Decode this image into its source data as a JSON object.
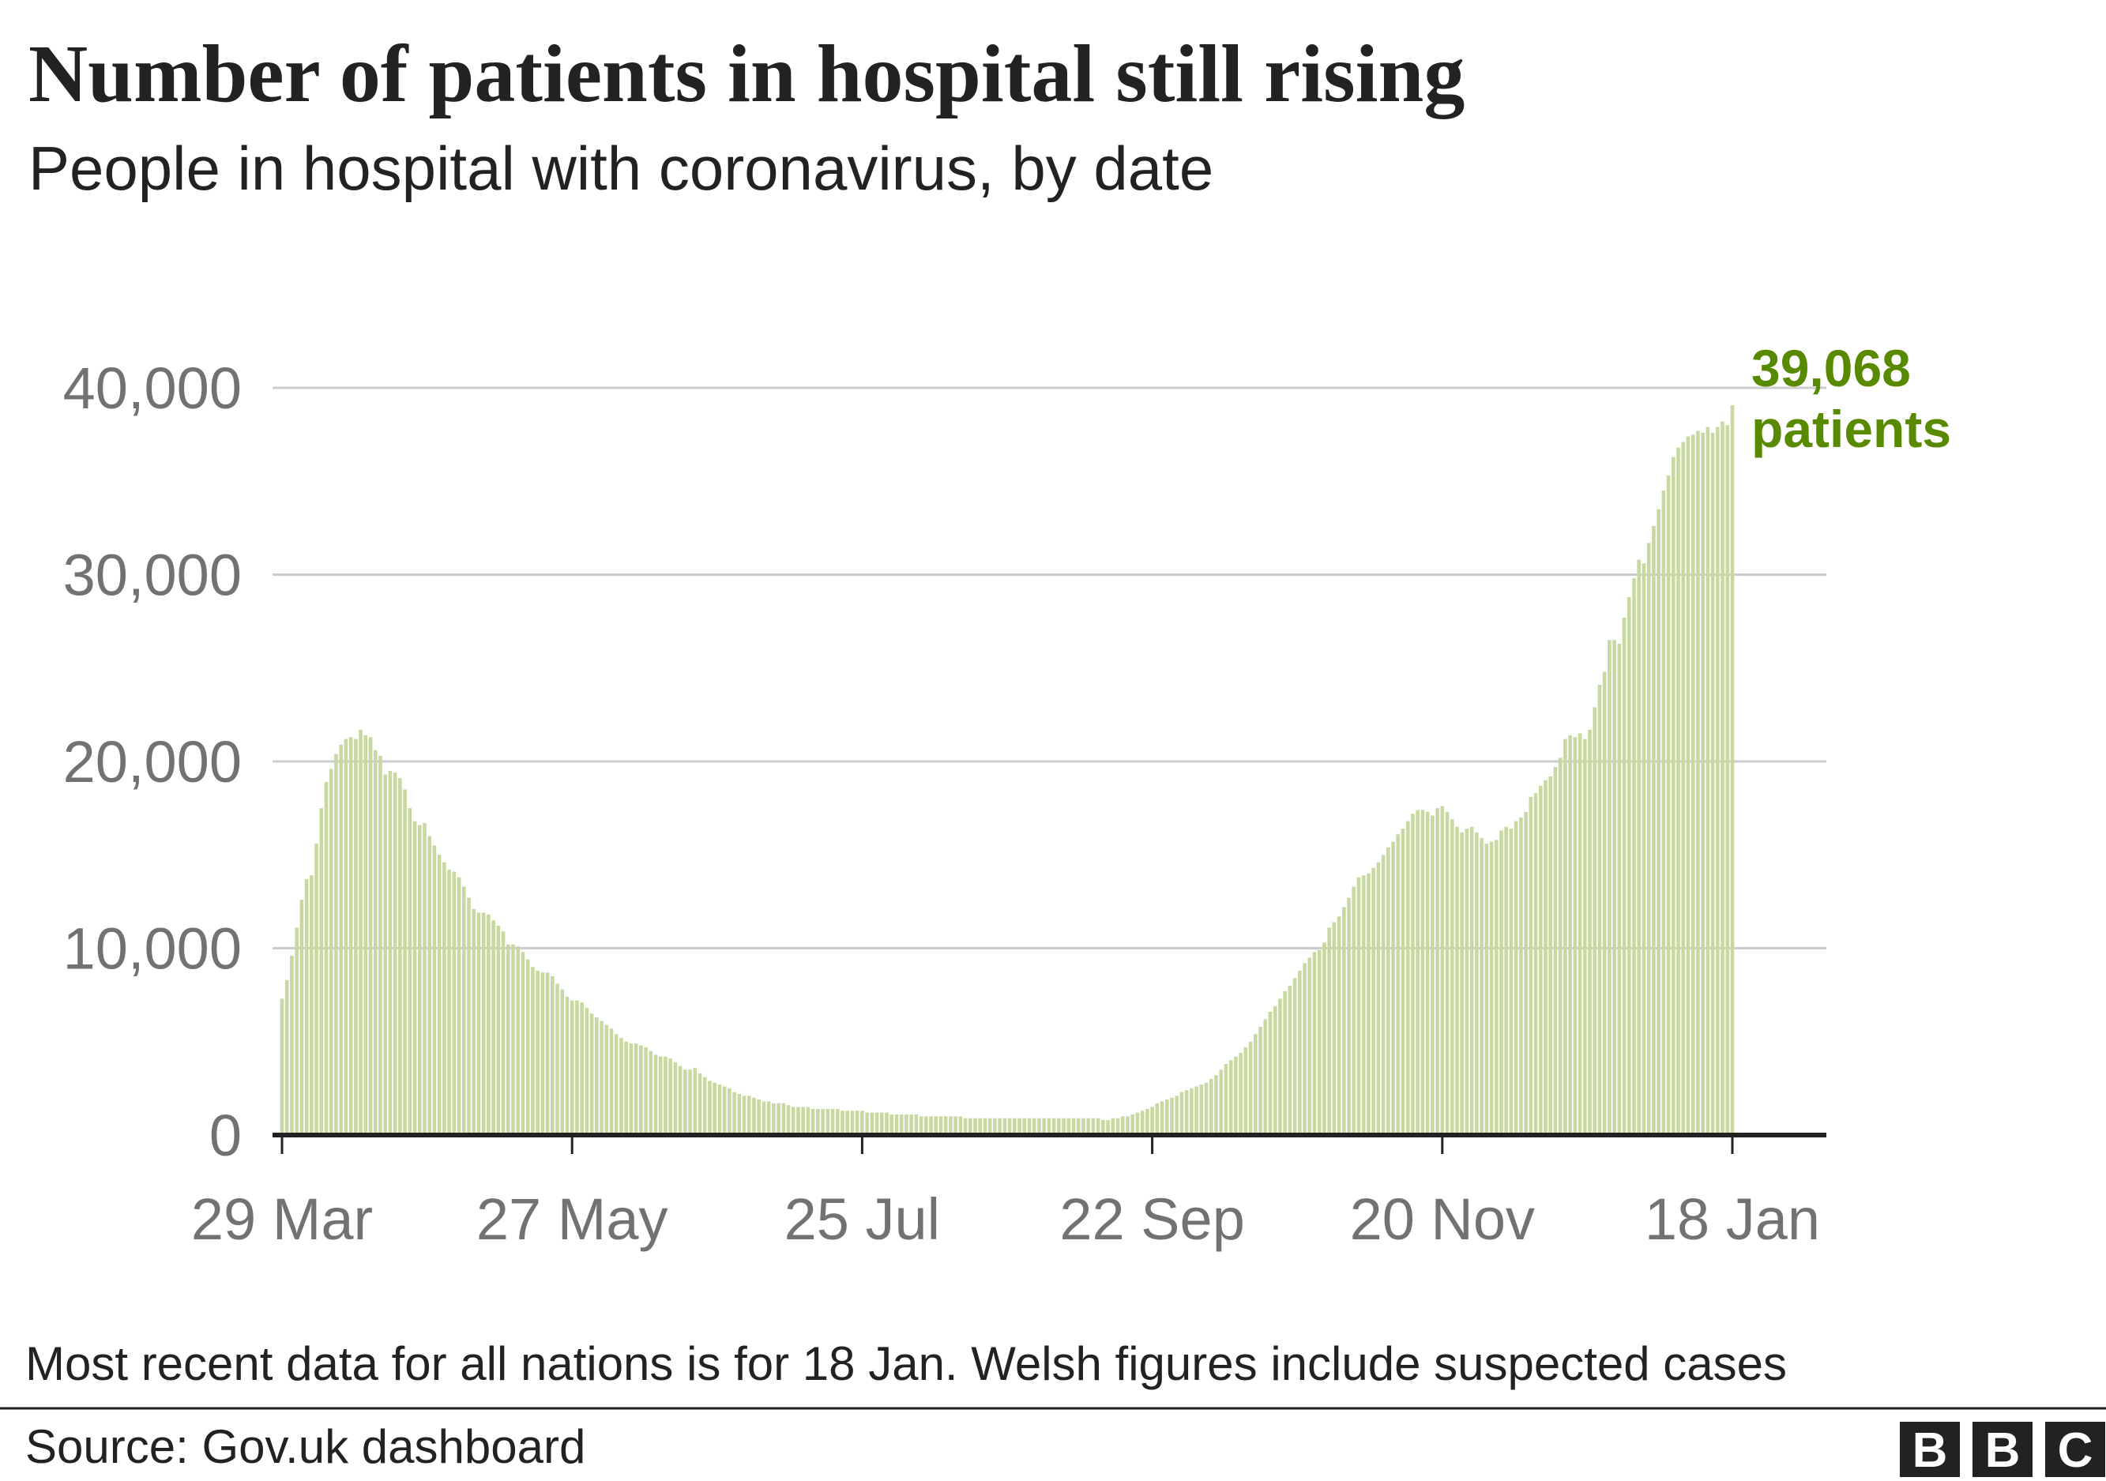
{
  "chart_data": {
    "type": "bar",
    "title": "Number of patients in hospital still rising",
    "subtitle": "People in hospital with coronavirus, by date",
    "categories": [
      "29 Mar",
      null,
      null,
      null,
      null,
      null,
      null,
      null,
      null,
      null,
      null,
      null,
      null,
      null,
      null,
      null,
      null,
      null,
      null,
      null,
      null,
      null,
      null,
      null,
      null,
      null,
      null,
      null,
      null,
      null,
      null,
      null,
      null,
      null,
      null,
      null,
      null,
      null,
      null,
      null,
      null,
      null,
      null,
      null,
      null,
      null,
      null,
      null,
      null,
      null,
      null,
      null,
      null,
      null,
      null,
      null,
      null,
      null,
      null,
      "27 May",
      null,
      null,
      null,
      null,
      null,
      null,
      null,
      null,
      null,
      null,
      null,
      null,
      null,
      null,
      null,
      null,
      null,
      null,
      null,
      null,
      null,
      null,
      null,
      null,
      null,
      null,
      null,
      null,
      null,
      null,
      null,
      null,
      null,
      null,
      null,
      null,
      null,
      null,
      null,
      null,
      null,
      null,
      null,
      null,
      null,
      null,
      null,
      null,
      null,
      null,
      null,
      null,
      null,
      null,
      null,
      null,
      null,
      null,
      "25 Jul",
      null,
      null,
      null,
      null,
      null,
      null,
      null,
      null,
      null,
      null,
      null,
      null,
      null,
      null,
      null,
      null,
      null,
      null,
      null,
      null,
      null,
      null,
      null,
      null,
      null,
      null,
      null,
      null,
      null,
      null,
      null,
      null,
      null,
      null,
      null,
      null,
      null,
      null,
      null,
      null,
      null,
      null,
      null,
      null,
      null,
      null,
      null,
      null,
      null,
      null,
      null,
      null,
      null,
      null,
      null,
      null,
      null,
      null,
      "22 Sep",
      null,
      null,
      null,
      null,
      null,
      null,
      null,
      null,
      null,
      null,
      null,
      null,
      null,
      null,
      null,
      null,
      null,
      null,
      null,
      null,
      null,
      null,
      null,
      null,
      null,
      null,
      null,
      null,
      null,
      null,
      null,
      null,
      null,
      null,
      null,
      null,
      null,
      null,
      null,
      null,
      null,
      null,
      null,
      null,
      null,
      null,
      null,
      null,
      null,
      null,
      null,
      null,
      null,
      null,
      null,
      null,
      null,
      null,
      "20 Nov",
      null,
      null,
      null,
      null,
      null,
      null,
      null,
      null,
      null,
      null,
      null,
      null,
      null,
      null,
      null,
      null,
      null,
      null,
      null,
      null,
      null,
      null,
      null,
      null,
      null,
      null,
      null,
      null,
      null,
      null,
      null,
      null,
      null,
      null,
      null,
      null,
      null,
      null,
      null,
      null,
      null,
      null,
      null,
      null,
      null,
      null,
      null,
      null,
      null,
      null,
      null,
      null,
      null,
      null,
      null,
      null,
      null,
      null,
      "18 Jan"
    ],
    "values": [
      7300,
      8300,
      9600,
      11100,
      12600,
      13700,
      13900,
      15600,
      17500,
      18900,
      19600,
      20400,
      20900,
      21200,
      21300,
      21200,
      21700,
      21400,
      21300,
      20600,
      20300,
      19300,
      19500,
      19400,
      19100,
      18500,
      17500,
      16800,
      16600,
      16700,
      16000,
      15500,
      15000,
      14600,
      14200,
      14100,
      13800,
      13300,
      12700,
      12100,
      11900,
      11900,
      11800,
      11500,
      11200,
      10900,
      10200,
      10200,
      10100,
      9800,
      9400,
      9000,
      8800,
      8700,
      8700,
      8500,
      8100,
      7800,
      7400,
      7200,
      7200,
      7100,
      6800,
      6500,
      6300,
      6100,
      5900,
      5700,
      5400,
      5200,
      5000,
      4900,
      4900,
      4800,
      4700,
      4500,
      4300,
      4200,
      4200,
      4100,
      3900,
      3700,
      3500,
      3500,
      3600,
      3300,
      3100,
      2900,
      2800,
      2700,
      2600,
      2500,
      2300,
      2200,
      2100,
      2100,
      2000,
      1900,
      1800,
      1800,
      1700,
      1700,
      1700,
      1600,
      1500,
      1500,
      1500,
      1500,
      1400,
      1400,
      1400,
      1400,
      1400,
      1400,
      1300,
      1300,
      1300,
      1300,
      1300,
      1200,
      1200,
      1200,
      1200,
      1200,
      1100,
      1100,
      1100,
      1100,
      1100,
      1100,
      1000,
      1000,
      1000,
      1000,
      1000,
      1000,
      1000,
      1000,
      1000,
      900,
      900,
      900,
      900,
      900,
      900,
      900,
      900,
      900,
      900,
      900,
      900,
      900,
      900,
      900,
      900,
      900,
      900,
      900,
      900,
      900,
      900,
      900,
      900,
      900,
      900,
      900,
      900,
      800,
      800,
      900,
      900,
      1000,
      1000,
      1100,
      1200,
      1300,
      1400,
      1500,
      1700,
      1800,
      1900,
      2000,
      2100,
      2300,
      2400,
      2500,
      2600,
      2700,
      2800,
      3000,
      3200,
      3500,
      3800,
      4000,
      4200,
      4400,
      4700,
      5000,
      5400,
      5800,
      6200,
      6600,
      6900,
      7300,
      7700,
      8000,
      8400,
      8800,
      9200,
      9500,
      9800,
      9900,
      10300,
      11100,
      11400,
      11700,
      12200,
      12700,
      13300,
      13800,
      13900,
      14000,
      14300,
      14600,
      15000,
      15400,
      15700,
      16100,
      16400,
      16800,
      17200,
      17400,
      17400,
      17300,
      17100,
      17500,
      17600,
      17300,
      16900,
      16500,
      16200,
      16400,
      16500,
      16200,
      15900,
      15600,
      15700,
      15800,
      16300,
      16500,
      16400,
      16800,
      17000,
      17300,
      18100,
      18300,
      18700,
      19000,
      19200,
      19700,
      20200,
      21200,
      21400,
      21300,
      21500,
      21200,
      21700,
      22900,
      24100,
      24800,
      26500,
      26500,
      26300,
      27700,
      28800,
      29800,
      30800,
      30600,
      31700,
      32600,
      33500,
      34500,
      35300,
      36300,
      36800,
      37100,
      37400,
      37500,
      37700,
      37600,
      37900,
      37600,
      37900,
      38200,
      38000,
      39068
    ],
    "value_labels": [
      null,
      null,
      null,
      null,
      null,
      null,
      null,
      null,
      null,
      null,
      null,
      null,
      null,
      null,
      null,
      null,
      null,
      null,
      null,
      null,
      null,
      null,
      null,
      null,
      null,
      null,
      null,
      null,
      null,
      null,
      null,
      null,
      null,
      null,
      null,
      null,
      null,
      null,
      null,
      null,
      null,
      null,
      null,
      null,
      null,
      null,
      null,
      null,
      null,
      null,
      null,
      null,
      null,
      null,
      null,
      null,
      null,
      null,
      null,
      null,
      null,
      null,
      null,
      null,
      null,
      null,
      null,
      null,
      null,
      null,
      null,
      null,
      null,
      null,
      null,
      null,
      null,
      null,
      null,
      null,
      null,
      null,
      null,
      null,
      null,
      null,
      null,
      null,
      null,
      null,
      null,
      null,
      null,
      null,
      null,
      null,
      null,
      null,
      null,
      null,
      null,
      null,
      null,
      null,
      null,
      null,
      null,
      null,
      null,
      null,
      null,
      null,
      null,
      null,
      null,
      null,
      null,
      null,
      null,
      null,
      null,
      null,
      null,
      null,
      null,
      null,
      null,
      null,
      null,
      null,
      null,
      null,
      null,
      null,
      null,
      null,
      null,
      null,
      null,
      null,
      null,
      null,
      null,
      null,
      null,
      null,
      null,
      null,
      null,
      null,
      null,
      null,
      null,
      null,
      null,
      null,
      null,
      null,
      null,
      null,
      null,
      null,
      null,
      null,
      null,
      null,
      null,
      null,
      null,
      null,
      null,
      null,
      null,
      null,
      null,
      null,
      null,
      null,
      null,
      null,
      null,
      null,
      null,
      null,
      null,
      null,
      null,
      null,
      null,
      null,
      null,
      null,
      null,
      null,
      null,
      null,
      null,
      null,
      null,
      null,
      null,
      null,
      null,
      null,
      null,
      null,
      null,
      null,
      null,
      null,
      null,
      null,
      null,
      null,
      null,
      null,
      null,
      null,
      null,
      null,
      null,
      null,
      null,
      null,
      null,
      null,
      null,
      null,
      null,
      null,
      null,
      null,
      null,
      null,
      null,
      null,
      null,
      null,
      null,
      null,
      null,
      null,
      null,
      null,
      null,
      null,
      null,
      null,
      null,
      null,
      null,
      null,
      null,
      null,
      null,
      null,
      null,
      null,
      null,
      null,
      null,
      null,
      null,
      null,
      null,
      null,
      null,
      null,
      null,
      null,
      null,
      null,
      null,
      null,
      null,
      null,
      null,
      null,
      null,
      null,
      null,
      null,
      null,
      null,
      null,
      null,
      null,
      null,
      null,
      null,
      null,
      null,
      null,
      null,
      null,
      "39,068"
    ],
    "annotation": "patients",
    "color": "#c7d9a0",
    "annotation_color": "#588a00",
    "ylim": [
      0,
      40000
    ],
    "yticks": [
      0,
      {
        "value": 10000,
        "label": "10,000"
      },
      {
        "value": 20000,
        "label": "20,000"
      },
      {
        "value": 30000,
        "label": "30,000"
      },
      {
        "value": 40000,
        "label": "40,000"
      }
    ],
    "grid": true,
    "footnote": "Most recent data for all nations is for 18 Jan. Welsh figures include suspected cases",
    "source": "Source: Gov.uk dashboard",
    "logo": [
      "B",
      "B",
      "C"
    ]
  }
}
